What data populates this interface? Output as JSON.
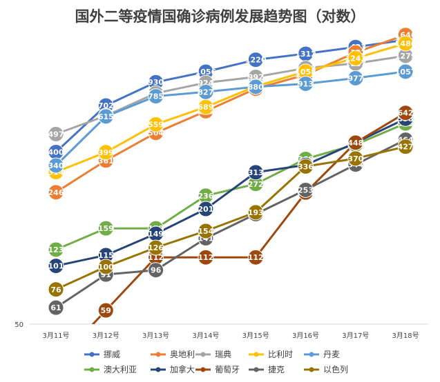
{
  "chart_data": {
    "type": "line",
    "title": "国外二等疫情国确诊病例发展趋势图（对数）",
    "x": [
      "3月11号",
      "3月12号",
      "3月13号",
      "3月14号",
      "3月15号",
      "3月16号",
      "3月17号",
      "3月18号"
    ],
    "y_scale": "log",
    "ylim": [
      50,
      1800
    ],
    "ytick_labels": [
      "50"
    ],
    "legend_position": "bottom",
    "grid": false,
    "series": [
      {
        "name": "挪威",
        "color": "#4472C4",
        "values": [
          400,
          702,
          930,
          1056,
          1220,
          1312,
          1423,
          1550
        ]
      },
      {
        "name": "奥地利",
        "color": "#ED7D31",
        "values": [
          246,
          361,
          504,
          655,
          860,
          1018,
          1332,
          1646
        ]
      },
      {
        "name": "瑞典",
        "color": "#A5A5A5",
        "values": [
          497,
          620,
          814,
          924,
          992,
          1103,
          1167,
          1279
        ]
      },
      {
        "name": "比利时",
        "color": "#FFC000",
        "values": [
          314,
          399,
          559,
          689,
          886,
          1058,
          1243,
          1486
        ]
      },
      {
        "name": "丹麦",
        "color": "#5B9BD5",
        "values": [
          340,
          615,
          785,
          827,
          880,
          913,
          977,
          1057
        ]
      },
      {
        "name": "澳大利亚",
        "color": "#70AD47",
        "values": [
          123,
          159,
          159,
          236,
          272,
          368,
          438,
          565
        ]
      },
      {
        "name": "加拿大",
        "color": "#264478",
        "values": [
          101,
          115,
          149,
          201,
          313,
          342,
          448,
          598
        ]
      },
      {
        "name": "葡萄牙",
        "color": "#9E480E",
        "values": [
          null,
          59,
          112,
          112,
          112,
          245,
          448,
          642
        ]
      },
      {
        "name": "捷克",
        "color": "#636363",
        "values": [
          61,
          91,
          96,
          141,
          189,
          253,
          344,
          464
        ]
      },
      {
        "name": "以色列",
        "color": "#997300",
        "values": [
          76,
          100,
          126,
          154,
          193,
          336,
          370,
          427
        ]
      }
    ]
  }
}
